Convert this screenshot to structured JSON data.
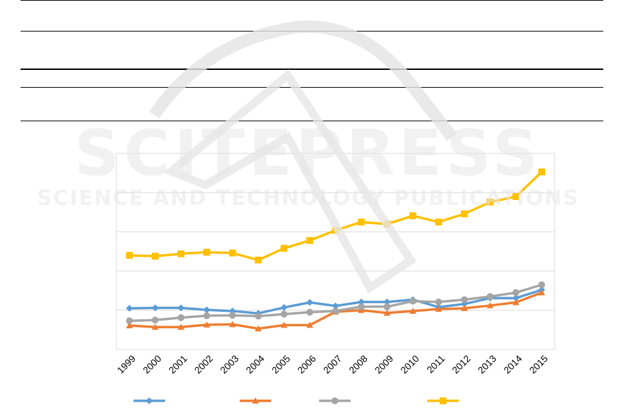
{
  "watermark": {
    "title": "SCITEPRESS",
    "subtitle": "SCIENCE AND TECHNOLOGY PUBLICATIONS"
  },
  "chart_data": {
    "type": "line",
    "title": "",
    "xlabel": "",
    "ylabel": "",
    "x": [
      "1999",
      "2000",
      "2001",
      "2002",
      "2003",
      "2004",
      "2005",
      "2006",
      "2007",
      "2008",
      "2009",
      "2010",
      "2011",
      "2012",
      "2013",
      "2014",
      "2015"
    ],
    "ylim": [
      0,
      5
    ],
    "grid": true,
    "legend_position": "bottom",
    "series": [
      {
        "color": "#5B9BD5",
        "marker": "diamond",
        "values": [
          1.05,
          1.06,
          1.06,
          1.01,
          0.98,
          0.92,
          1.07,
          1.2,
          1.11,
          1.21,
          1.21,
          1.27,
          1.08,
          1.16,
          1.31,
          1.31,
          1.52
        ]
      },
      {
        "color": "#ED7D31",
        "marker": "triangle",
        "values": [
          0.61,
          0.57,
          0.57,
          0.63,
          0.64,
          0.53,
          0.62,
          0.62,
          0.96,
          1.0,
          0.93,
          0.98,
          1.03,
          1.05,
          1.12,
          1.2,
          1.45
        ]
      },
      {
        "color": "#A5A5A5",
        "marker": "circle",
        "values": [
          0.73,
          0.75,
          0.81,
          0.86,
          0.87,
          0.85,
          0.9,
          0.95,
          0.98,
          1.09,
          1.09,
          1.23,
          1.21,
          1.27,
          1.35,
          1.45,
          1.65
        ]
      },
      {
        "color": "#FFC000",
        "marker": "square",
        "values": [
          2.4,
          2.38,
          2.44,
          2.48,
          2.46,
          2.28,
          2.58,
          2.78,
          3.04,
          3.25,
          3.2,
          3.41,
          3.25,
          3.46,
          3.76,
          3.9,
          4.53
        ]
      }
    ]
  }
}
